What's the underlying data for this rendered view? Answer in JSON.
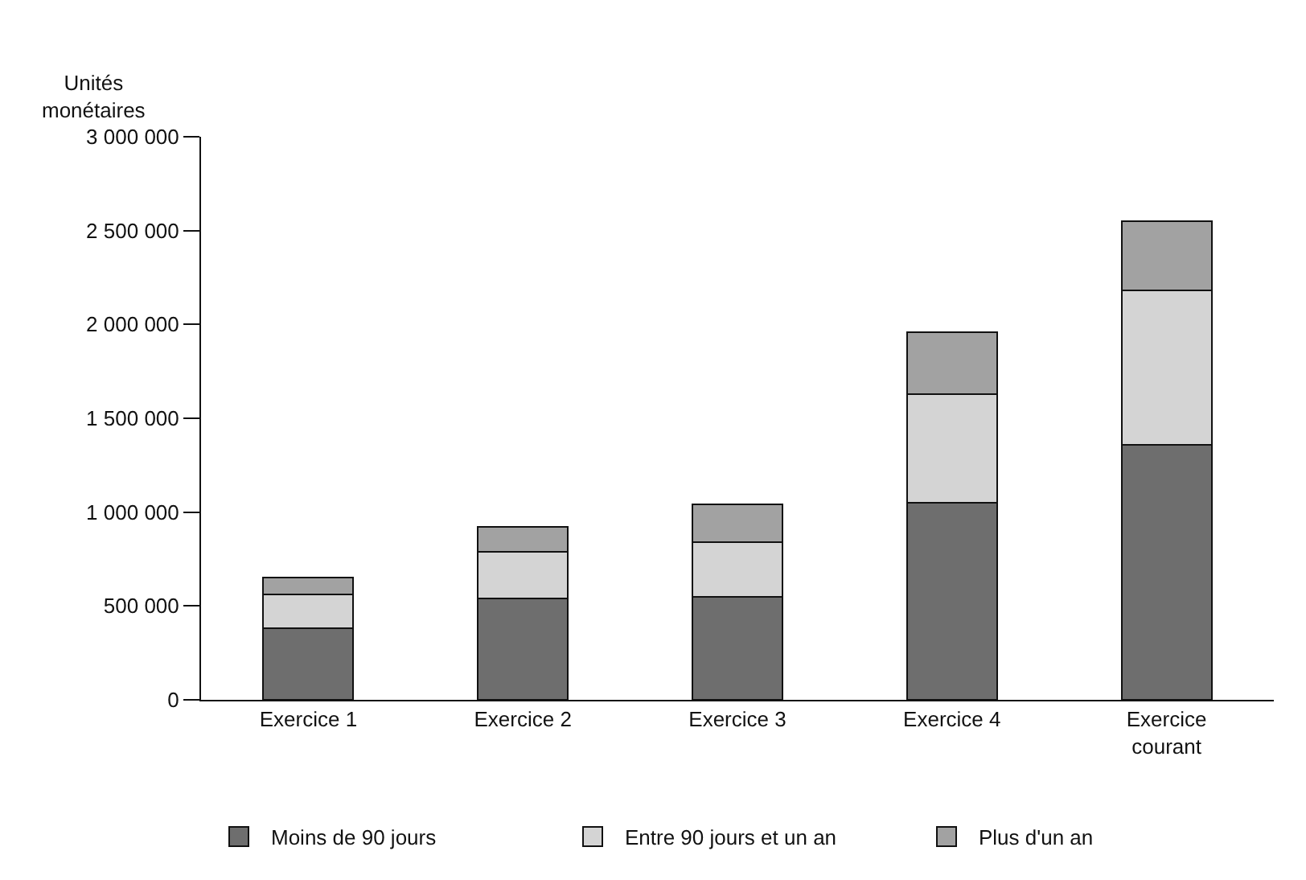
{
  "chart_data": {
    "type": "bar",
    "stacked": true,
    "ylabel": "Unités\nmonétaires",
    "categories": [
      "Exercice 1",
      "Exercice 2",
      "Exercice 3",
      "Exercice 4",
      "Exercice\ncourant"
    ],
    "series": [
      {
        "name": "Moins de 90 jours",
        "color": "#6e6e6e",
        "values": [
          380000,
          540000,
          550000,
          1050000,
          1360000
        ]
      },
      {
        "name": "Entre 90 jours et un an",
        "color": "#d4d4d4",
        "values": [
          180000,
          250000,
          290000,
          580000,
          820000
        ]
      },
      {
        "name": "Plus d'un an",
        "color": "#a2a2a2",
        "values": [
          90000,
          130000,
          200000,
          330000,
          370000
        ]
      }
    ],
    "ylim": [
      0,
      3000000
    ],
    "yticks": [
      0,
      {
        "value": 500000,
        "label": "500 000"
      },
      {
        "value": 1000000,
        "label": "1 000 000"
      },
      {
        "value": 1500000,
        "label": "1 500 000"
      },
      {
        "value": 2000000,
        "label": "2 000 000"
      },
      {
        "value": 2500000,
        "label": "2 500 000"
      },
      {
        "value": 3000000,
        "label": "3 000 000"
      }
    ],
    "legend": "bottom"
  }
}
